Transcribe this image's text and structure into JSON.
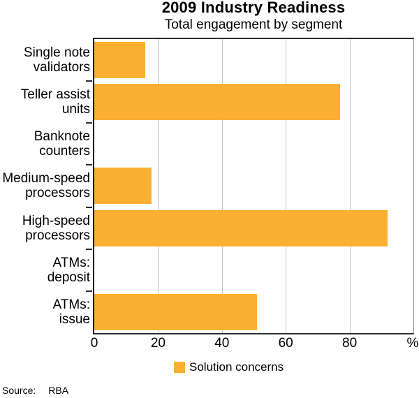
{
  "title": "2009 Industry Readiness",
  "subtitle": "Total engagement by segment",
  "source": {
    "label": "Source:",
    "value": "RBA"
  },
  "legend": {
    "items": [
      {
        "label": "Solution concerns",
        "color": "#FBB034"
      }
    ]
  },
  "colors": {
    "bar": "#FBB034",
    "gridline": "#c4c4c4",
    "frame": "#2e2e2e",
    "text": "#000000"
  },
  "chart_data": {
    "type": "bar",
    "orientation": "horizontal",
    "title": "2009 Industry Readiness",
    "subtitle": "Total engagement by segment",
    "categories": [
      "Single note validators",
      "Teller assist units",
      "Banknote counters",
      "Medium-speed processors",
      "High-speed processors",
      "ATMs: deposit",
      "ATMs: issue"
    ],
    "category_lines": [
      [
        "Single note",
        "validators"
      ],
      [
        "Teller assist",
        "units"
      ],
      [
        "Banknote",
        "counters"
      ],
      [
        "Medium-speed",
        "processors"
      ],
      [
        "High-speed",
        "processors"
      ],
      [
        "ATMs:",
        "deposit"
      ],
      [
        "ATMs:",
        "issue"
      ]
    ],
    "series": [
      {
        "name": "Solution concerns",
        "values": [
          16,
          77,
          0,
          18,
          92,
          0,
          51
        ]
      }
    ],
    "xticks": [
      0,
      20,
      40,
      60,
      80
    ],
    "x_unit_label": "%",
    "xlim": [
      0,
      100
    ],
    "grid": "vertical",
    "legend_position": "bottom-center",
    "source_note": "Source: RBA"
  }
}
